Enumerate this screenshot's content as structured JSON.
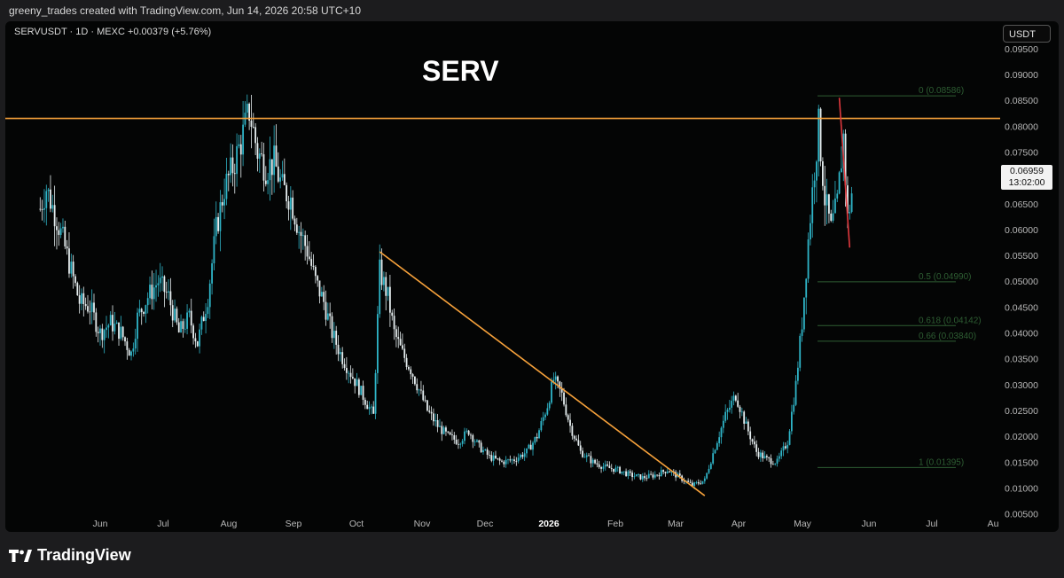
{
  "header": {
    "attribution": "greeny_trades created with TradingView.com, Jun 14, 2026 20:58 UTC+10"
  },
  "toolbar": {
    "symbol_info": "SERVUSDT · 1D · MEXC  +0.00379 (+5.76%)",
    "currency": "USDT"
  },
  "footer": {
    "brand": "TradingView"
  },
  "colors": {
    "background": "#040505",
    "candle": "#2fb5c8",
    "candle_alt": "#e6eef0",
    "resistance": "#f7a23b",
    "trendline": "#f7a23b",
    "down_trendline": "#e0393e",
    "fib": "#2e5e33"
  },
  "chart_data": {
    "type": "candlestick",
    "title": "SERV",
    "x_ticks": [
      "Jun",
      "Jul",
      "Aug",
      "Sep",
      "Oct",
      "Nov",
      "Dec",
      "2026",
      "Feb",
      "Mar",
      "Apr",
      "May",
      "Jun",
      "Jul",
      "Au"
    ],
    "y_ticks": [
      "0.00500",
      "0.01000",
      "0.01500",
      "0.02000",
      "0.02500",
      "0.03000",
      "0.03500",
      "0.04000",
      "0.04500",
      "0.05000",
      "0.05500",
      "0.06000",
      "0.06500",
      "0.07000",
      "0.07500",
      "0.08000",
      "0.08500",
      "0.09000",
      "0.09500"
    ],
    "ylim": [
      0.0015,
      0.1003
    ],
    "last_price": "0.06959",
    "countdown": "13:02:00",
    "fib_levels": [
      {
        "label": "0 (0.08586)",
        "value": 0.08586
      },
      {
        "label": "0.5 (0.04990)",
        "value": 0.0499
      },
      {
        "label": "0.618 (0.04142)",
        "value": 0.04142
      },
      {
        "label": "0.66 (0.03840)",
        "value": 0.0384
      },
      {
        "label": "1 (0.01395)",
        "value": 0.01395
      }
    ],
    "resistance_level": 0.0815,
    "trendline": {
      "start": [
        "Oct 28",
        0.0557
      ],
      "end": [
        "Apr 3",
        0.0085
      ]
    },
    "down_trendline": {
      "start": [
        "Jun 7",
        0.0855
      ],
      "end": [
        "Jun 12",
        0.0565
      ]
    },
    "price_path": [
      [
        "May 17",
        0.064
      ],
      [
        "May 20",
        0.068
      ],
      [
        "May 25",
        0.062
      ],
      [
        "May 28",
        0.058
      ],
      [
        "Jun 1",
        0.052
      ],
      [
        "Jun 5",
        0.046
      ],
      [
        "Jun 10",
        0.045
      ],
      [
        "Jun 15",
        0.04
      ],
      [
        "Jun 20",
        0.042
      ],
      [
        "Jun 25",
        0.04
      ],
      [
        "Jun 30",
        0.036
      ],
      [
        "Jul 3",
        0.043
      ],
      [
        "Jul 8",
        0.047
      ],
      [
        "Jul 13",
        0.05
      ],
      [
        "Jul 18",
        0.047
      ],
      [
        "Jul 23",
        0.04
      ],
      [
        "Jul 28",
        0.043
      ],
      [
        "Aug 1",
        0.038
      ],
      [
        "Aug 6",
        0.047
      ],
      [
        "Aug 10",
        0.06
      ],
      [
        "Aug 14",
        0.068
      ],
      [
        "Aug 18",
        0.072
      ],
      [
        "Aug 22",
        0.077
      ],
      [
        "Aug 26",
        0.083
      ],
      [
        "Aug 30",
        0.075
      ],
      [
        "Sep 3",
        0.072
      ],
      [
        "Sep 7",
        0.073
      ],
      [
        "Sep 11",
        0.068
      ],
      [
        "Sep 15",
        0.066
      ],
      [
        "Sep 19",
        0.06
      ],
      [
        "Sep 23",
        0.056
      ],
      [
        "Sep 27",
        0.05
      ],
      [
        "Oct 1",
        0.046
      ],
      [
        "Oct 5",
        0.04
      ],
      [
        "Oct 9",
        0.036
      ],
      [
        "Oct 13",
        0.033
      ],
      [
        "Oct 17",
        0.03
      ],
      [
        "Oct 21",
        0.027
      ],
      [
        "Oct 25",
        0.024
      ],
      [
        "Oct 28",
        0.052
      ],
      [
        "Nov 1",
        0.047
      ],
      [
        "Nov 4",
        0.04
      ],
      [
        "Nov 8",
        0.036
      ],
      [
        "Nov 12",
        0.033
      ],
      [
        "Nov 16",
        0.029
      ],
      [
        "Nov 20",
        0.025
      ],
      [
        "Nov 25",
        0.022
      ],
      [
        "Nov 30",
        0.02
      ],
      [
        "Dec 5",
        0.019
      ],
      [
        "Dec 10",
        0.021
      ],
      [
        "Dec 15",
        0.018
      ],
      [
        "Dec 20",
        0.016
      ],
      [
        "Dec 26",
        0.015
      ],
      [
        "Jan 1",
        0.0155
      ],
      [
        "Jan 7",
        0.017
      ],
      [
        "Jan 12",
        0.02
      ],
      [
        "Jan 17",
        0.026
      ],
      [
        "Jan 20",
        0.031
      ],
      [
        "Jan 24",
        0.028
      ],
      [
        "Jan 28",
        0.022
      ],
      [
        "Feb 2",
        0.017
      ],
      [
        "Feb 8",
        0.015
      ],
      [
        "Feb 14",
        0.014
      ],
      [
        "Feb 20",
        0.0135
      ],
      [
        "Feb 26",
        0.0125
      ],
      [
        "Mar 4",
        0.012
      ],
      [
        "Mar 10",
        0.0125
      ],
      [
        "Mar 16",
        0.0135
      ],
      [
        "Mar 22",
        0.012
      ],
      [
        "Mar 28",
        0.0105
      ],
      [
        "Apr 3",
        0.0115
      ],
      [
        "Apr 8",
        0.018
      ],
      [
        "Apr 13",
        0.024
      ],
      [
        "Apr 18",
        0.028
      ],
      [
        "Apr 23",
        0.022
      ],
      [
        "Apr 28",
        0.017
      ],
      [
        "May 3",
        0.0155
      ],
      [
        "May 8",
        0.015
      ],
      [
        "May 13",
        0.019
      ],
      [
        "May 17",
        0.03
      ],
      [
        "May 20",
        0.042
      ],
      [
        "May 23",
        0.058
      ],
      [
        "May 26",
        0.072
      ],
      [
        "May 28",
        0.08
      ],
      [
        "May 31",
        0.066
      ],
      [
        "Jun 3",
        0.06
      ],
      [
        "Jun 6",
        0.065
      ],
      [
        "Jun 9",
        0.078
      ],
      [
        "Jun 11",
        0.062
      ],
      [
        "Jun 14",
        0.0696
      ]
    ]
  }
}
